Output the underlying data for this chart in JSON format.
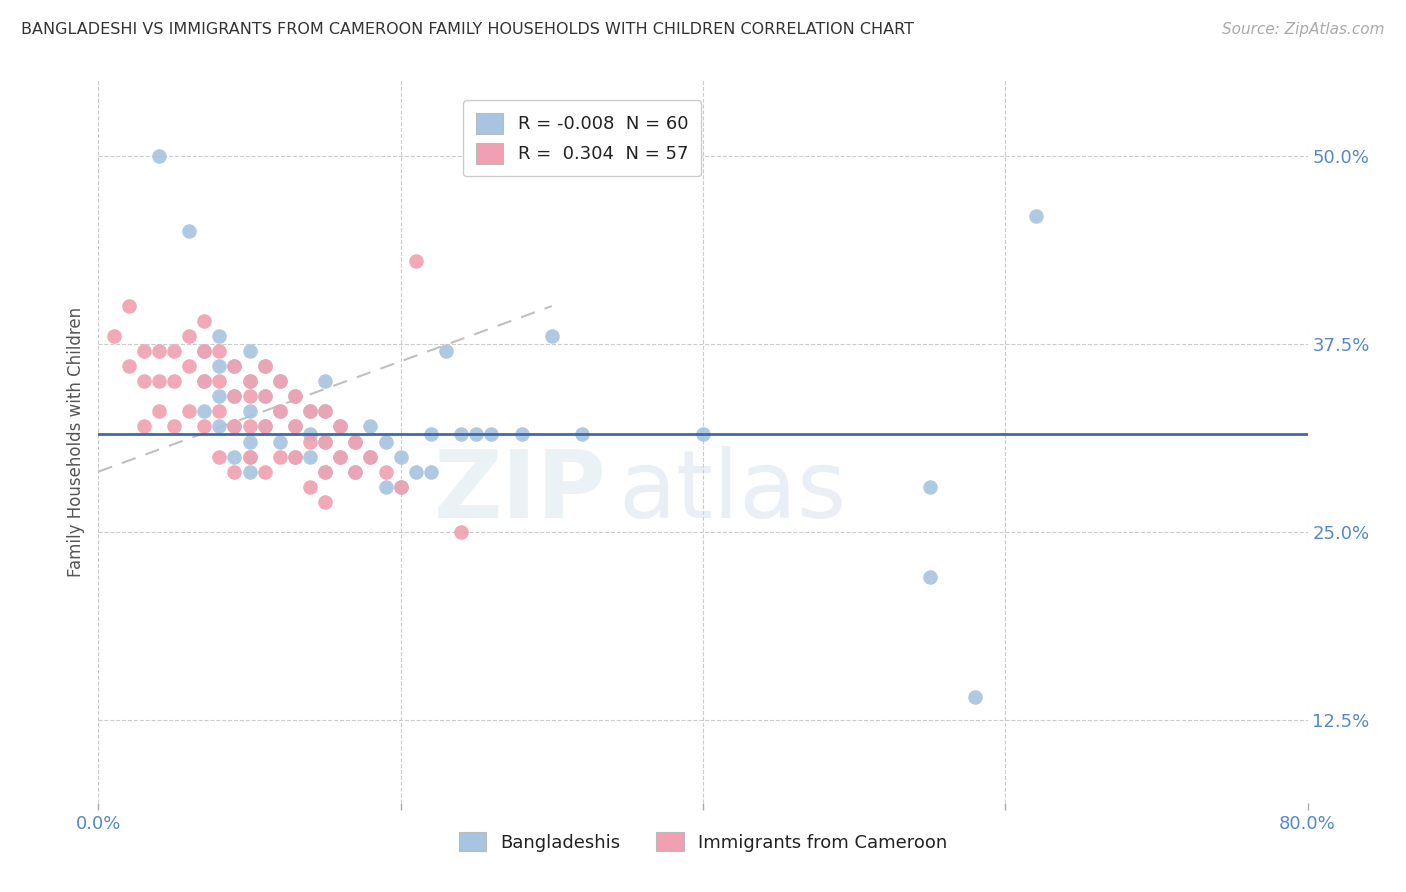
{
  "title": "BANGLADESHI VS IMMIGRANTS FROM CAMEROON FAMILY HOUSEHOLDS WITH CHILDREN CORRELATION CHART",
  "source": "Source: ZipAtlas.com",
  "xlabel_bangladeshi": "Bangladeshis",
  "xlabel_cameroon": "Immigrants from Cameroon",
  "ylabel": "Family Households with Children",
  "xlim": [
    0.0,
    0.8
  ],
  "ylim": [
    0.07,
    0.55
  ],
  "xticks": [
    0.0,
    0.2,
    0.4,
    0.6,
    0.8
  ],
  "xtick_labels": [
    "0.0%",
    "",
    "",
    "",
    "80.0%"
  ],
  "ytick_vals": [
    0.125,
    0.25,
    0.375,
    0.5
  ],
  "ytick_labels": [
    "12.5%",
    "25.0%",
    "37.5%",
    "50.0%"
  ],
  "blue_R": -0.008,
  "blue_N": 60,
  "pink_R": 0.304,
  "pink_N": 57,
  "blue_color": "#a8c4e0",
  "pink_color": "#f0a0b0",
  "blue_line_color": "#4169aa",
  "watermark_text": "ZIP",
  "watermark_text2": "atlas",
  "blue_x": [
    0.04,
    0.06,
    0.07,
    0.07,
    0.07,
    0.08,
    0.08,
    0.08,
    0.08,
    0.09,
    0.09,
    0.09,
    0.09,
    0.1,
    0.1,
    0.1,
    0.1,
    0.1,
    0.1,
    0.11,
    0.11,
    0.11,
    0.12,
    0.12,
    0.12,
    0.13,
    0.13,
    0.13,
    0.14,
    0.14,
    0.14,
    0.15,
    0.15,
    0.15,
    0.15,
    0.16,
    0.16,
    0.17,
    0.17,
    0.18,
    0.18,
    0.19,
    0.19,
    0.2,
    0.2,
    0.21,
    0.22,
    0.22,
    0.23,
    0.24,
    0.25,
    0.26,
    0.28,
    0.3,
    0.32,
    0.4,
    0.55,
    0.55,
    0.58,
    0.62
  ],
  "blue_y": [
    0.5,
    0.45,
    0.37,
    0.35,
    0.33,
    0.38,
    0.36,
    0.34,
    0.32,
    0.36,
    0.34,
    0.32,
    0.3,
    0.37,
    0.35,
    0.33,
    0.31,
    0.3,
    0.29,
    0.36,
    0.34,
    0.32,
    0.35,
    0.33,
    0.31,
    0.34,
    0.32,
    0.3,
    0.33,
    0.315,
    0.3,
    0.35,
    0.33,
    0.31,
    0.29,
    0.32,
    0.3,
    0.31,
    0.29,
    0.32,
    0.3,
    0.31,
    0.28,
    0.3,
    0.28,
    0.29,
    0.315,
    0.29,
    0.37,
    0.315,
    0.315,
    0.315,
    0.315,
    0.38,
    0.315,
    0.315,
    0.28,
    0.22,
    0.14,
    0.46
  ],
  "pink_x": [
    0.01,
    0.02,
    0.02,
    0.03,
    0.03,
    0.03,
    0.04,
    0.04,
    0.04,
    0.05,
    0.05,
    0.05,
    0.06,
    0.06,
    0.06,
    0.07,
    0.07,
    0.07,
    0.07,
    0.08,
    0.08,
    0.08,
    0.08,
    0.09,
    0.09,
    0.09,
    0.09,
    0.1,
    0.1,
    0.1,
    0.1,
    0.11,
    0.11,
    0.11,
    0.11,
    0.12,
    0.12,
    0.12,
    0.13,
    0.13,
    0.13,
    0.14,
    0.14,
    0.14,
    0.15,
    0.15,
    0.15,
    0.15,
    0.16,
    0.16,
    0.17,
    0.17,
    0.18,
    0.19,
    0.2,
    0.21,
    0.24
  ],
  "pink_y": [
    0.38,
    0.4,
    0.36,
    0.37,
    0.35,
    0.32,
    0.37,
    0.35,
    0.33,
    0.37,
    0.35,
    0.32,
    0.38,
    0.36,
    0.33,
    0.39,
    0.37,
    0.35,
    0.32,
    0.37,
    0.35,
    0.33,
    0.3,
    0.36,
    0.34,
    0.32,
    0.29,
    0.35,
    0.34,
    0.32,
    0.3,
    0.36,
    0.34,
    0.32,
    0.29,
    0.35,
    0.33,
    0.3,
    0.34,
    0.32,
    0.3,
    0.33,
    0.31,
    0.28,
    0.33,
    0.31,
    0.29,
    0.27,
    0.32,
    0.3,
    0.31,
    0.29,
    0.3,
    0.29,
    0.28,
    0.43,
    0.25
  ],
  "blue_trend_x": [
    0.0,
    0.8
  ],
  "blue_trend_y": [
    0.315,
    0.315
  ],
  "pink_trend_x": [
    0.0,
    0.3
  ],
  "pink_trend_y": [
    0.29,
    0.4
  ]
}
